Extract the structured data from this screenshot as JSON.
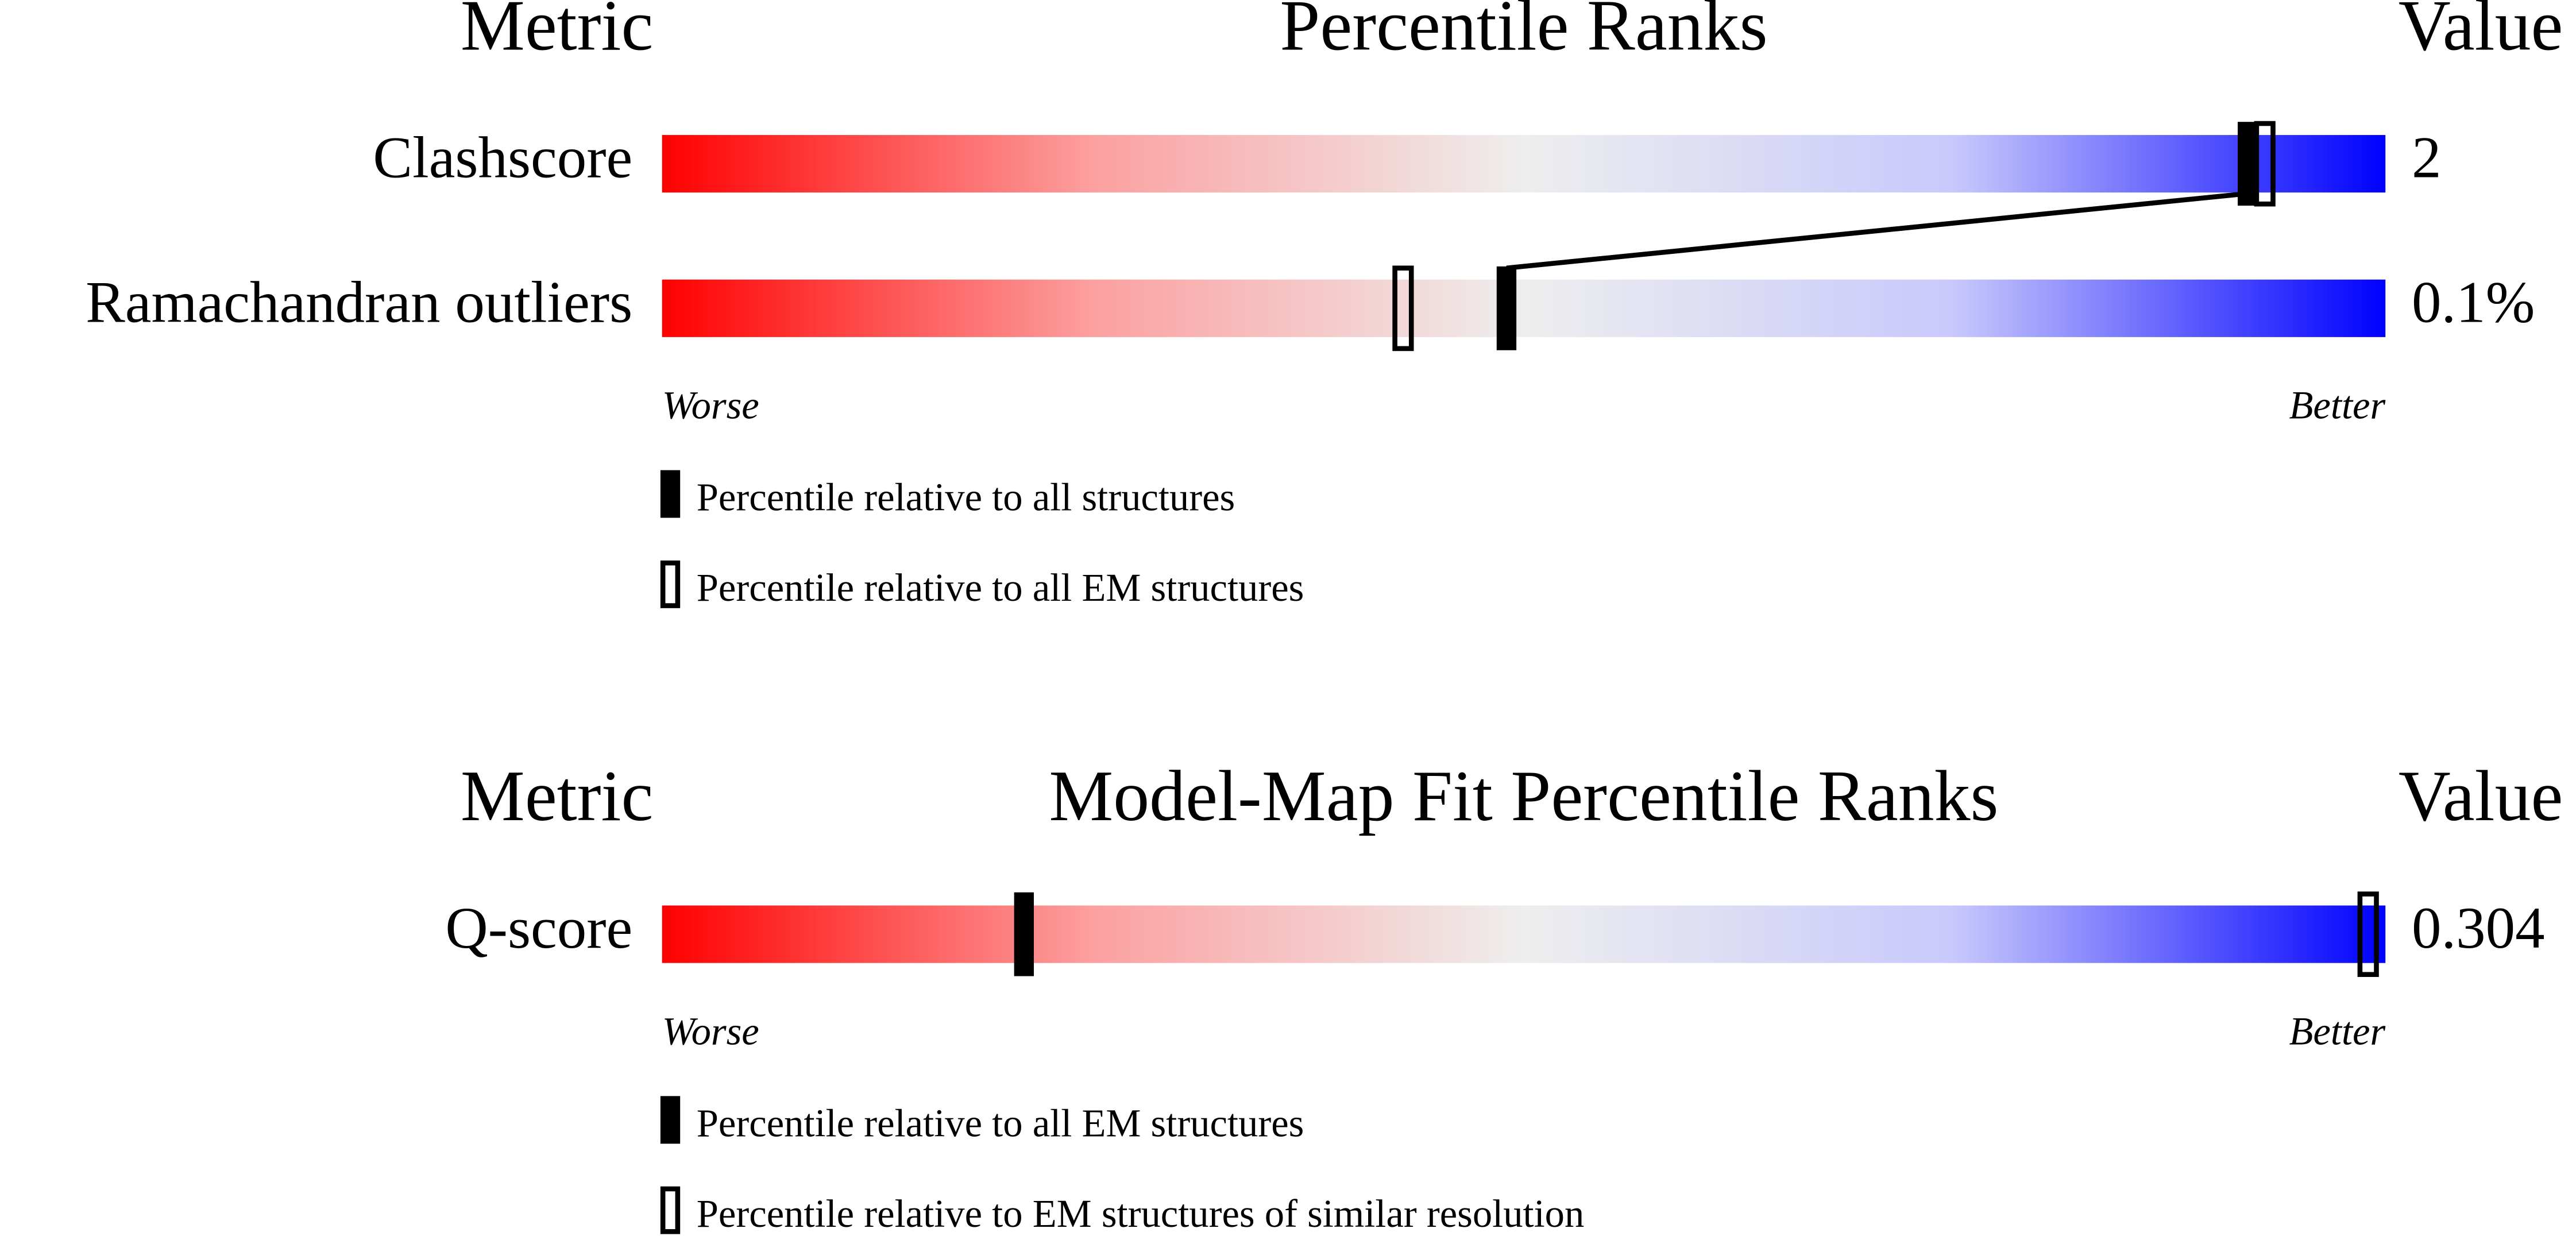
{
  "panels": [
    {
      "header": {
        "metric": "Metric",
        "title": "Percentile Ranks",
        "value": "Value"
      },
      "rows": [
        {
          "metric": "Clashscore",
          "value": "2",
          "filled_percentile": 92,
          "open_percentile": 93
        },
        {
          "metric": "Ramachandran outliers",
          "value": "0.1%",
          "filled_percentile": 49,
          "open_percentile": 43
        }
      ],
      "worse": "Worse",
      "better": "Better",
      "legend": [
        {
          "style": "filled",
          "label": "Percentile relative to all structures"
        },
        {
          "style": "open",
          "label": "Percentile relative to all EM structures"
        }
      ]
    },
    {
      "header": {
        "metric": "Metric",
        "title": "Model-Map Fit Percentile Ranks",
        "value": "Value"
      },
      "rows": [
        {
          "metric": "Q-score",
          "value": "0.304",
          "filled_percentile": 21,
          "open_percentile": 99
        }
      ],
      "worse": "Worse",
      "better": "Better",
      "legend": [
        {
          "style": "filled",
          "label": "Percentile relative to all EM structures"
        },
        {
          "style": "open",
          "label": "Percentile relative to EM structures of similar resolution"
        }
      ]
    }
  ]
}
